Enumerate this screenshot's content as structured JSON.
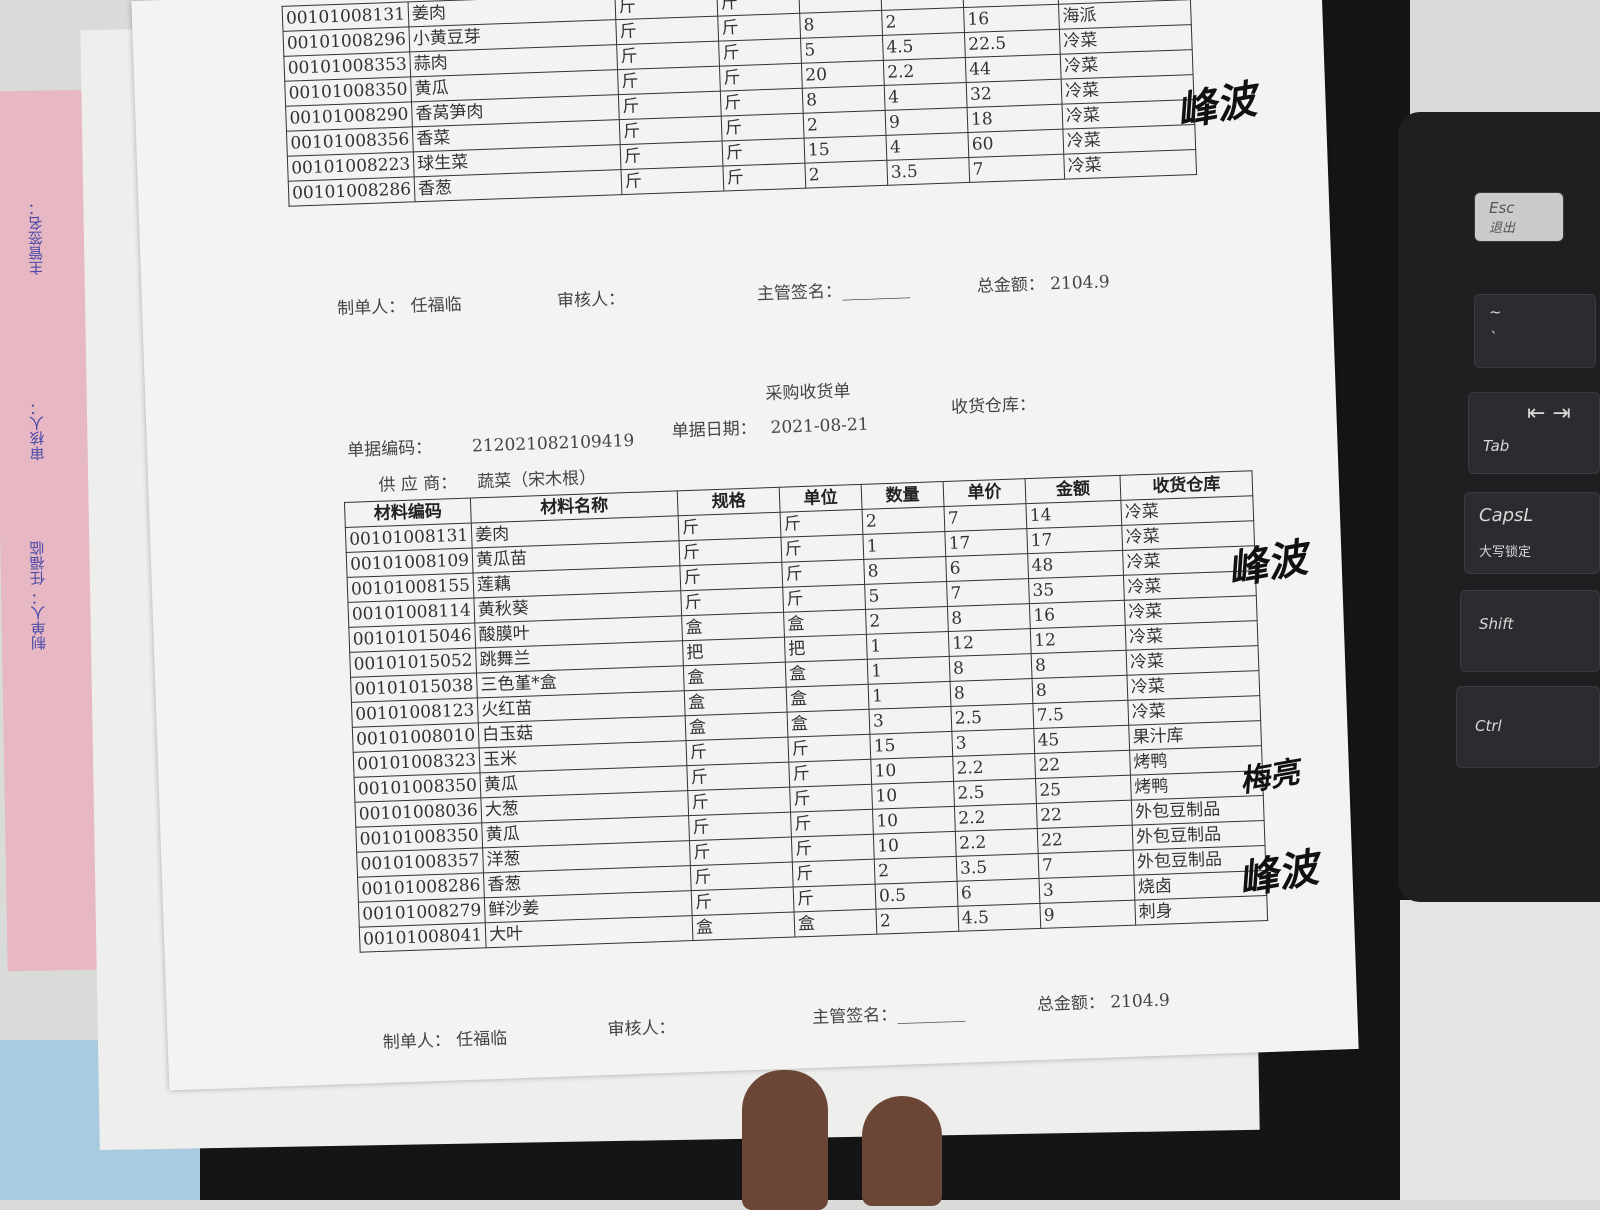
{
  "top_form": {
    "rows": [
      [
        "00101008131",
        "姜肉",
        "斤",
        "斤",
        "",
        "",
        "",
        "海派"
      ],
      [
        "00101008296",
        "小黄豆芽",
        "斤",
        "斤",
        "8",
        "2",
        "16",
        "海派"
      ],
      [
        "00101008353",
        "蒜肉",
        "斤",
        "斤",
        "5",
        "4.5",
        "22.5",
        "冷菜"
      ],
      [
        "00101008350",
        "黄瓜",
        "斤",
        "斤",
        "20",
        "2.2",
        "44",
        "冷菜"
      ],
      [
        "00101008290",
        "香莴笋肉",
        "斤",
        "斤",
        "8",
        "4",
        "32",
        "冷菜"
      ],
      [
        "00101008356",
        "香菜",
        "斤",
        "斤",
        "2",
        "9",
        "18",
        "冷菜"
      ],
      [
        "00101008223",
        "球生菜",
        "斤",
        "斤",
        "15",
        "4",
        "60",
        "冷菜"
      ],
      [
        "00101008286",
        "香葱",
        "斤",
        "斤",
        "2",
        "3.5",
        "7",
        "冷菜"
      ]
    ],
    "maker_label": "制单人：",
    "maker": "任福临",
    "reviewer_label": "审核人：",
    "supervisor_label": "主管签名：",
    "supervisor_blank": "________",
    "total_label": "总金额：",
    "total": "2104.9"
  },
  "form": {
    "title": "采购收货单",
    "doc_no_label": "单据编码：",
    "doc_no": "212021082109419",
    "date_label": "单据日期：",
    "date": "2021-08-21",
    "warehouse_label": "收货仓库：",
    "supplier_label": "供 应 商：",
    "supplier": "蔬菜（宋木根）",
    "headers": [
      "材料编码",
      "材料名称",
      "规格",
      "单位",
      "数量",
      "单价",
      "金额",
      "收货仓库"
    ],
    "rows": [
      [
        "00101008131",
        "姜肉",
        "斤",
        "斤",
        "2",
        "7",
        "14",
        "冷菜"
      ],
      [
        "00101008109",
        "黄瓜苗",
        "斤",
        "斤",
        "1",
        "17",
        "17",
        "冷菜"
      ],
      [
        "00101008155",
        "莲藕",
        "斤",
        "斤",
        "8",
        "6",
        "48",
        "冷菜"
      ],
      [
        "00101008114",
        "黄秋葵",
        "斤",
        "斤",
        "5",
        "7",
        "35",
        "冷菜"
      ],
      [
        "00101015046",
        "酸膜叶",
        "盒",
        "盒",
        "2",
        "8",
        "16",
        "冷菜"
      ],
      [
        "00101015052",
        "跳舞兰",
        "把",
        "把",
        "1",
        "12",
        "12",
        "冷菜"
      ],
      [
        "00101015038",
        "三色堇*盒",
        "盒",
        "盒",
        "1",
        "8",
        "8",
        "冷菜"
      ],
      [
        "00101008123",
        "火红苗",
        "盒",
        "盒",
        "1",
        "8",
        "8",
        "冷菜"
      ],
      [
        "00101008010",
        "白玉菇",
        "盒",
        "盒",
        "3",
        "2.5",
        "7.5",
        "冷菜"
      ],
      [
        "00101008323",
        "玉米",
        "斤",
        "斤",
        "15",
        "3",
        "45",
        "果汁库"
      ],
      [
        "00101008350",
        "黄瓜",
        "斤",
        "斤",
        "10",
        "2.2",
        "22",
        "烤鸭"
      ],
      [
        "00101008036",
        "大葱",
        "斤",
        "斤",
        "10",
        "2.5",
        "25",
        "烤鸭"
      ],
      [
        "00101008350",
        "黄瓜",
        "斤",
        "斤",
        "10",
        "2.2",
        "22",
        "外包豆制品"
      ],
      [
        "00101008357",
        "洋葱",
        "斤",
        "斤",
        "10",
        "2.2",
        "22",
        "外包豆制品"
      ],
      [
        "00101008286",
        "香葱",
        "斤",
        "斤",
        "2",
        "3.5",
        "7",
        "外包豆制品"
      ],
      [
        "00101008279",
        "鲜沙姜",
        "斤",
        "斤",
        "0.5",
        "6",
        "3",
        "烧卤"
      ],
      [
        "00101008041",
        "大叶",
        "盒",
        "盒",
        "2",
        "4.5",
        "9",
        "刺身"
      ]
    ],
    "maker_label": "制单人：",
    "maker": "任福临",
    "reviewer_label": "审核人：",
    "supervisor_label": "主管签名：",
    "supervisor_blank": "________",
    "total_label": "总金额：",
    "total": "2104.9",
    "signatures": [
      "峰波",
      "梅亮",
      "峰波"
    ]
  },
  "left_pink_sheet": {
    "labels": [
      "主管签名：",
      "审核人：",
      "制单人： 任福临"
    ]
  },
  "keyboard": {
    "esc": "Esc",
    "esc_sub": "退出",
    "tilde": "~",
    "backtick": "`",
    "tab": "Tab",
    "tab_arrows": "⇤ ⇥",
    "caps": "CapsL",
    "caps_sub": "大写锁定",
    "shift": "Shift",
    "ctrl": "Ctrl"
  },
  "colors": {
    "paper": "#f3f3f1",
    "ink": "#333333",
    "pink_sheet": "#e7b8c3",
    "keyboard": "#1e1f21"
  }
}
